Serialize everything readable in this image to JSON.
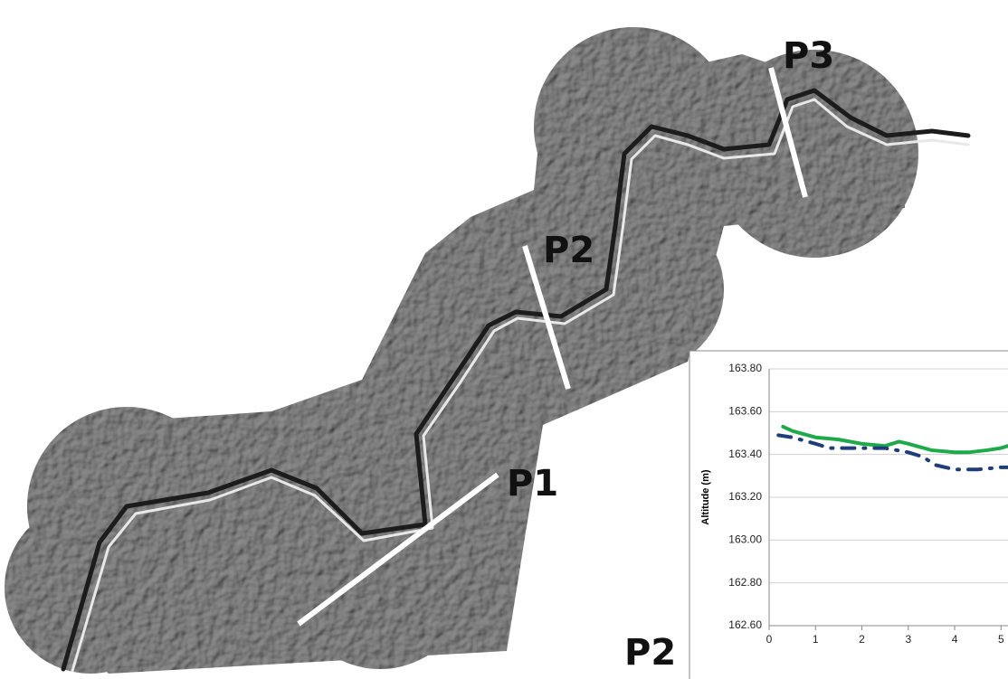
{
  "map": {
    "profiles": [
      "P1",
      "P2",
      "P3"
    ],
    "inset_label": "P2"
  },
  "chart_data": {
    "type": "line",
    "y_label": "Altitude (m)",
    "xlim": [
      0,
      5.15
    ],
    "ylim": [
      162.6,
      163.8
    ],
    "xticks": [
      0,
      1,
      2,
      3,
      4,
      5
    ],
    "yticks": [
      {
        "value": 162.6,
        "label": "162.60"
      },
      {
        "value": 162.8,
        "label": "162.80"
      },
      {
        "value": 163.0,
        "label": "163.00"
      },
      {
        "value": 163.2,
        "label": "163.20"
      },
      {
        "value": 163.4,
        "label": "163.40"
      },
      {
        "value": 163.6,
        "label": "163.60"
      },
      {
        "value": 163.8,
        "label": "163.80"
      }
    ],
    "grid": true,
    "series": [
      {
        "color": "#1faa4a",
        "dash": "solid",
        "x": [
          0.3,
          0.5,
          1,
          1.5,
          2,
          2.5,
          2.8,
          3,
          3.5,
          4,
          4.3,
          4.7,
          5,
          5.15
        ],
        "values": [
          163.53,
          163.51,
          163.48,
          163.47,
          163.45,
          163.44,
          163.46,
          163.45,
          163.42,
          163.41,
          163.41,
          163.42,
          163.43,
          163.44
        ]
      },
      {
        "color": "#1f3d7a",
        "dash": "dashdot",
        "x": [
          0.2,
          0.5,
          1,
          1.3,
          2,
          2.5,
          3,
          3.3,
          3.6,
          4,
          4.5,
          5,
          5.15
        ],
        "values": [
          163.49,
          163.48,
          163.45,
          163.43,
          163.43,
          163.43,
          163.41,
          163.39,
          163.35,
          163.33,
          163.33,
          163.34,
          163.34
        ]
      }
    ]
  }
}
